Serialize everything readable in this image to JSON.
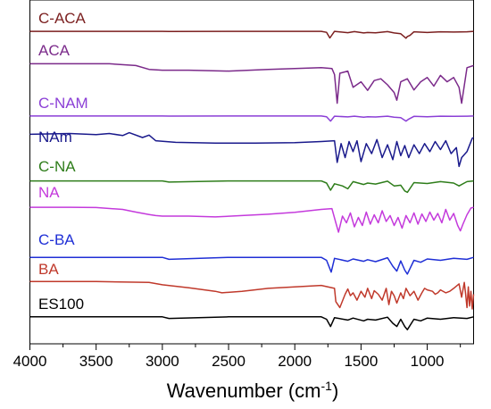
{
  "chart_data": {
    "type": "line",
    "xlabel_main": "Wavenumber (cm",
    "xlabel_sup": "-1",
    "xlabel_close": ")",
    "ylabel": "",
    "xlim": [
      4000,
      650
    ],
    "x_reversed": true,
    "y_ticks_shown": false,
    "grid": false,
    "x_ticks": [
      4000,
      3500,
      3000,
      2500,
      2000,
      1500,
      1000
    ],
    "x_tick_labels": [
      "4000",
      "3500",
      "3000",
      "2500",
      "2000",
      "1500",
      "1000"
    ],
    "series": [
      {
        "name": "C-ACA",
        "color": "#7b1f1f",
        "x": [
          4000,
          3500,
          3000,
          2950,
          2500,
          2000,
          1800,
          1760,
          1735,
          1700,
          1600,
          1550,
          1480,
          1450,
          1390,
          1300,
          1250,
          1200,
          1160,
          1150,
          1130,
          1100,
          1000,
          900,
          800,
          700,
          650
        ],
        "y": [
          0.93,
          0.93,
          0.93,
          0.92,
          0.93,
          0.93,
          0.93,
          0.86,
          0.47,
          0.93,
          0.84,
          0.91,
          0.82,
          0.85,
          0.83,
          0.91,
          0.82,
          0.76,
          0.45,
          0.57,
          0.65,
          0.9,
          0.85,
          0.9,
          0.88,
          0.9,
          0.93
        ]
      },
      {
        "name": "ACA",
        "color": "#7b2a8a",
        "x": [
          4000,
          3600,
          3400,
          3200,
          3100,
          3000,
          2800,
          2500,
          2200,
          2000,
          1800,
          1720,
          1700,
          1680,
          1660,
          1600,
          1560,
          1500,
          1450,
          1400,
          1350,
          1300,
          1250,
          1230,
          1200,
          1150,
          1100,
          1050,
          1000,
          950,
          900,
          850,
          800,
          760,
          740,
          700,
          650
        ],
        "y": [
          0.97,
          0.97,
          0.97,
          0.93,
          0.84,
          0.82,
          0.82,
          0.8,
          0.84,
          0.86,
          0.88,
          0.86,
          0.72,
          0.05,
          0.75,
          0.8,
          0.42,
          0.55,
          0.35,
          0.58,
          0.62,
          0.48,
          0.3,
          0.12,
          0.55,
          0.62,
          0.36,
          0.55,
          0.65,
          0.45,
          0.7,
          0.55,
          0.65,
          0.42,
          0.05,
          0.88,
          0.93
        ]
      },
      {
        "name": "C-NAM",
        "color": "#8b3fd6",
        "x": [
          4000,
          3500,
          3000,
          2950,
          2500,
          2000,
          1800,
          1760,
          1730,
          1700,
          1600,
          1550,
          1480,
          1450,
          1390,
          1300,
          1250,
          1200,
          1160,
          1140,
          1100,
          1000,
          900,
          800,
          700,
          650
        ],
        "y": [
          0.92,
          0.92,
          0.92,
          0.91,
          0.92,
          0.92,
          0.92,
          0.85,
          0.4,
          0.9,
          0.83,
          0.9,
          0.8,
          0.84,
          0.82,
          0.9,
          0.8,
          0.75,
          0.4,
          0.6,
          0.88,
          0.84,
          0.9,
          0.88,
          0.9,
          0.92
        ]
      },
      {
        "name": "NAm",
        "color": "#1a1a8c",
        "x": [
          4000,
          3700,
          3500,
          3400,
          3300,
          3250,
          3150,
          3100,
          3050,
          2900,
          2600,
          2300,
          2000,
          1800,
          1700,
          1680,
          1650,
          1620,
          1590,
          1560,
          1530,
          1500,
          1460,
          1420,
          1380,
          1340,
          1300,
          1260,
          1230,
          1200,
          1170,
          1140,
          1100,
          1060,
          1020,
          980,
          940,
          900,
          860,
          820,
          780,
          760,
          740,
          700,
          660,
          650
        ],
        "y": [
          0.88,
          0.9,
          0.87,
          0.9,
          0.85,
          0.92,
          0.8,
          0.86,
          0.72,
          0.68,
          0.66,
          0.66,
          0.67,
          0.7,
          0.72,
          0.18,
          0.65,
          0.3,
          0.7,
          0.45,
          0.72,
          0.2,
          0.65,
          0.4,
          0.75,
          0.3,
          0.62,
          0.25,
          0.7,
          0.35,
          0.6,
          0.3,
          0.62,
          0.4,
          0.65,
          0.45,
          0.7,
          0.5,
          0.72,
          0.4,
          0.55,
          0.08,
          0.3,
          0.45,
          0.78,
          0.8
        ]
      },
      {
        "name": "C-NA",
        "color": "#2e7d1a",
        "x": [
          4000,
          3500,
          3000,
          2950,
          2500,
          2000,
          1800,
          1760,
          1730,
          1700,
          1640,
          1600,
          1560,
          1480,
          1450,
          1390,
          1300,
          1250,
          1200,
          1170,
          1150,
          1100,
          1000,
          900,
          800,
          760,
          700,
          650
        ],
        "y": [
          0.9,
          0.9,
          0.9,
          0.82,
          0.9,
          0.9,
          0.9,
          0.75,
          0.25,
          0.7,
          0.55,
          0.35,
          0.85,
          0.65,
          0.75,
          0.68,
          0.88,
          0.55,
          0.6,
          0.2,
          0.1,
          0.78,
          0.72,
          0.85,
          0.75,
          0.55,
          0.85,
          0.9
        ]
      },
      {
        "name": "NA",
        "color": "#c43adc",
        "x": [
          4000,
          3700,
          3500,
          3300,
          3200,
          3100,
          3050,
          3000,
          2800,
          2600,
          2400,
          2200,
          2000,
          1800,
          1720,
          1690,
          1670,
          1640,
          1610,
          1580,
          1550,
          1520,
          1490,
          1460,
          1430,
          1400,
          1370,
          1340,
          1310,
          1280,
          1250,
          1220,
          1190,
          1160,
          1130,
          1100,
          1070,
          1040,
          1010,
          980,
          950,
          920,
          890,
          860,
          830,
          800,
          770,
          750,
          730,
          700,
          670,
          650
        ],
        "y": [
          0.93,
          0.93,
          0.92,
          0.85,
          0.75,
          0.66,
          0.62,
          0.6,
          0.6,
          0.57,
          0.62,
          0.67,
          0.74,
          0.85,
          0.88,
          0.35,
          0.0,
          0.6,
          0.35,
          0.72,
          0.2,
          0.55,
          0.25,
          0.75,
          0.3,
          0.65,
          0.35,
          0.8,
          0.4,
          0.62,
          0.25,
          0.55,
          0.15,
          0.62,
          0.35,
          0.72,
          0.3,
          0.68,
          0.4,
          0.75,
          0.45,
          0.7,
          0.35,
          0.85,
          0.45,
          0.7,
          0.25,
          0.05,
          0.3,
          0.65,
          0.9,
          0.93
        ]
      },
      {
        "name": "C-BA",
        "color": "#1f2fd6",
        "x": [
          4000,
          3500,
          3000,
          2950,
          2500,
          2000,
          1800,
          1760,
          1725,
          1700,
          1600,
          1560,
          1480,
          1450,
          1390,
          1300,
          1260,
          1230,
          1200,
          1170,
          1150,
          1100,
          1050,
          1000,
          900,
          800,
          700,
          650
        ],
        "y": [
          0.9,
          0.9,
          0.9,
          0.8,
          0.9,
          0.9,
          0.9,
          0.75,
          0.15,
          0.85,
          0.7,
          0.82,
          0.7,
          0.78,
          0.68,
          0.88,
          0.45,
          0.2,
          0.72,
          0.25,
          0.05,
          0.75,
          0.65,
          0.82,
          0.75,
          0.85,
          0.8,
          0.9
        ]
      },
      {
        "name": "BA",
        "color": "#c0392b",
        "x": [
          4000,
          3500,
          3100,
          3000,
          2800,
          2600,
          2550,
          2400,
          2200,
          2000,
          1800,
          1700,
          1690,
          1660,
          1620,
          1600,
          1580,
          1560,
          1530,
          1500,
          1470,
          1450,
          1420,
          1400,
          1370,
          1340,
          1310,
          1290,
          1270,
          1250,
          1230,
          1200,
          1180,
          1160,
          1130,
          1100,
          1070,
          1040,
          1020,
          1000,
          960,
          940,
          920,
          900,
          860,
          830,
          800,
          760,
          740,
          720,
          710,
          700,
          690,
          680,
          670,
          660,
          650
        ],
        "y": [
          0.93,
          0.93,
          0.9,
          0.82,
          0.72,
          0.6,
          0.55,
          0.6,
          0.7,
          0.75,
          0.8,
          0.7,
          0.25,
          0.05,
          0.5,
          0.68,
          0.45,
          0.55,
          0.3,
          0.6,
          0.4,
          0.7,
          0.35,
          0.62,
          0.5,
          0.3,
          0.7,
          0.15,
          0.6,
          0.45,
          0.2,
          0.55,
          0.35,
          0.7,
          0.45,
          0.6,
          0.3,
          0.55,
          0.7,
          0.65,
          0.6,
          0.5,
          0.55,
          0.65,
          0.55,
          0.6,
          0.7,
          0.85,
          0.4,
          0.9,
          0.5,
          0.05,
          0.75,
          0.1,
          0.6,
          0.0,
          0.5
        ]
      },
      {
        "name": "ES100",
        "color": "#000000",
        "x": [
          4000,
          3500,
          3000,
          2950,
          2500,
          2000,
          1800,
          1760,
          1730,
          1700,
          1600,
          1560,
          1480,
          1450,
          1390,
          1300,
          1260,
          1230,
          1200,
          1170,
          1150,
          1100,
          1050,
          1000,
          900,
          800,
          700,
          650
        ],
        "y": [
          0.9,
          0.9,
          0.9,
          0.8,
          0.9,
          0.9,
          0.9,
          0.75,
          0.3,
          0.85,
          0.7,
          0.82,
          0.65,
          0.75,
          0.7,
          0.88,
          0.5,
          0.3,
          0.75,
          0.3,
          0.1,
          0.75,
          0.65,
          0.82,
          0.75,
          0.85,
          0.8,
          0.9
        ]
      }
    ]
  }
}
